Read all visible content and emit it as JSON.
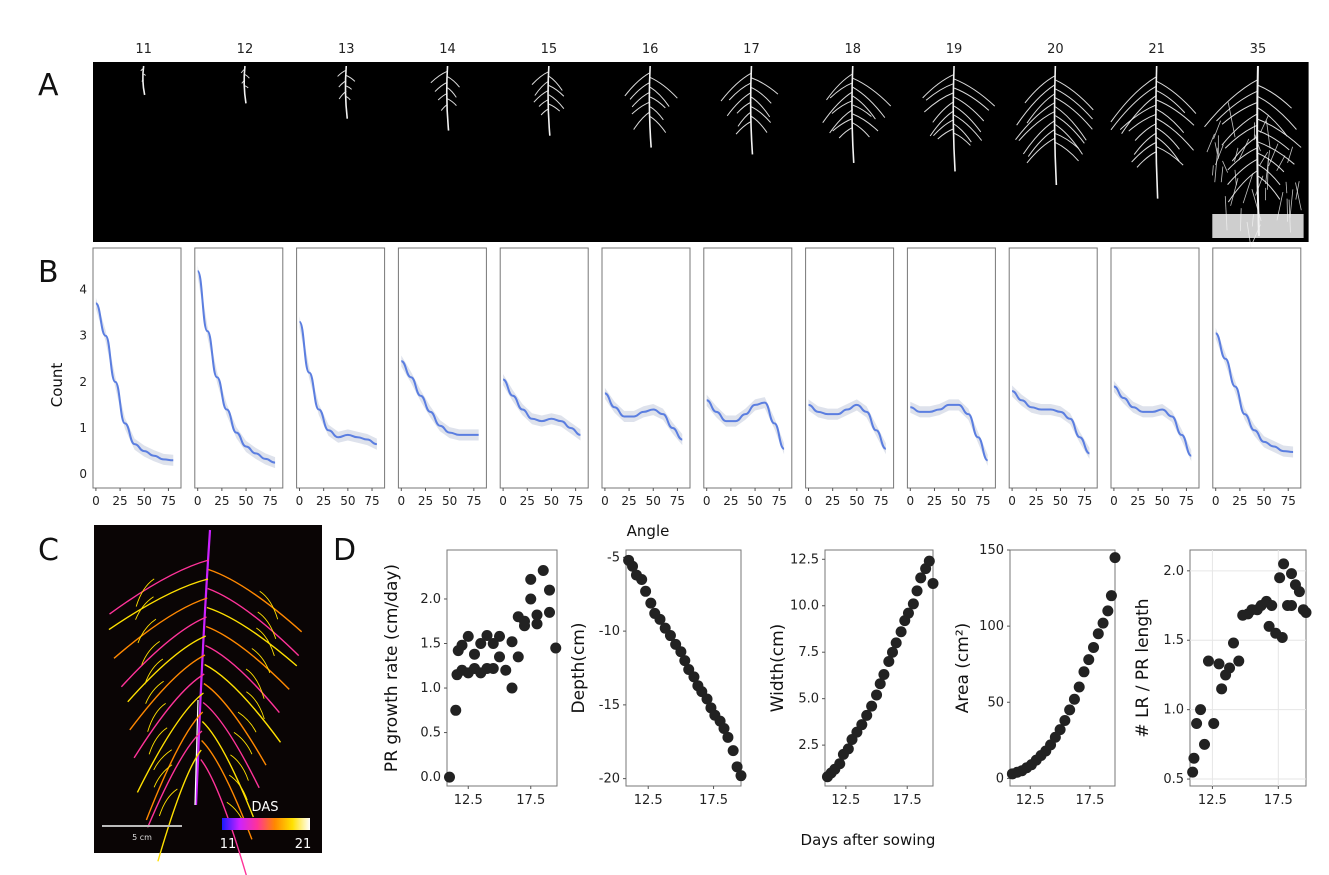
{
  "panel_labels": [
    "A",
    "B",
    "C",
    "D"
  ],
  "panel_a": {
    "days": [
      "11",
      "12",
      "13",
      "14",
      "15",
      "16",
      "17",
      "18",
      "19",
      "20",
      "21",
      "35"
    ],
    "root_extent": [
      0.17,
      0.22,
      0.31,
      0.38,
      0.41,
      0.48,
      0.52,
      0.57,
      0.62,
      0.7,
      0.78,
      1.0
    ],
    "root_halfwidth": [
      0.03,
      0.05,
      0.09,
      0.14,
      0.19,
      0.24,
      0.28,
      0.34,
      0.38,
      0.42,
      0.42,
      0.46
    ],
    "background": "#000000",
    "root_color": "#f2f2f2"
  },
  "panel_b": {
    "ylabel": "Count",
    "xlabel": "Angle",
    "x_ticks": [
      "0",
      "25",
      "50",
      "75"
    ],
    "y_ticks": [
      "0",
      "1",
      "2",
      "3",
      "4"
    ],
    "line_color": "#5b7ee0",
    "ribbon_color": "#d0d6e4",
    "chart_data": {
      "type": "line",
      "x": [
        0,
        10,
        20,
        30,
        40,
        50,
        60,
        70,
        80
      ],
      "xlim": [
        -3,
        88
      ],
      "ylim": [
        -0.3,
        4.9
      ],
      "series": [
        {
          "values": [
            3.7,
            3.0,
            2.0,
            1.1,
            0.65,
            0.5,
            0.4,
            0.32,
            0.3
          ]
        },
        {
          "values": [
            4.4,
            3.1,
            2.1,
            1.4,
            0.9,
            0.6,
            0.45,
            0.33,
            0.25
          ]
        },
        {
          "values": [
            3.3,
            2.2,
            1.4,
            0.95,
            0.8,
            0.85,
            0.8,
            0.75,
            0.65
          ]
        },
        {
          "values": [
            2.45,
            2.1,
            1.7,
            1.35,
            1.05,
            0.9,
            0.85,
            0.85,
            0.85
          ]
        },
        {
          "values": [
            2.05,
            1.7,
            1.4,
            1.2,
            1.15,
            1.2,
            1.15,
            1.0,
            0.85
          ]
        },
        {
          "values": [
            1.75,
            1.45,
            1.25,
            1.25,
            1.35,
            1.4,
            1.3,
            1.0,
            0.75
          ]
        },
        {
          "values": [
            1.6,
            1.35,
            1.15,
            1.15,
            1.3,
            1.5,
            1.55,
            1.1,
            0.55
          ]
        },
        {
          "values": [
            1.5,
            1.35,
            1.3,
            1.3,
            1.4,
            1.5,
            1.35,
            0.95,
            0.55
          ]
        },
        {
          "values": [
            1.45,
            1.35,
            1.35,
            1.4,
            1.5,
            1.5,
            1.3,
            0.8,
            0.3
          ]
        },
        {
          "values": [
            1.8,
            1.6,
            1.45,
            1.4,
            1.4,
            1.35,
            1.2,
            0.8,
            0.45
          ]
        },
        {
          "values": [
            1.9,
            1.65,
            1.45,
            1.35,
            1.35,
            1.4,
            1.25,
            0.85,
            0.4
          ]
        },
        {
          "values": [
            3.05,
            2.5,
            1.9,
            1.3,
            0.95,
            0.7,
            0.6,
            0.5,
            0.48
          ]
        }
      ]
    }
  },
  "panel_c": {
    "legend_title": "DAS",
    "legend_min": "11",
    "legend_max": "21",
    "scale_bar_label": "5 cm",
    "gradient_colors": [
      "#1a1aff",
      "#cc22ff",
      "#ff3399",
      "#ff8800",
      "#ffe000",
      "#ffffff"
    ]
  },
  "panel_d": {
    "xlabel": "Days after sowing",
    "point_color": "#222222",
    "chart_data": [
      {
        "type": "scatter",
        "ylabel": "PR growth rate (cm/day)",
        "xlim": [
          10.8,
          19.6
        ],
        "ylim": [
          -0.1,
          2.55
        ],
        "x_ticks": [
          12.5,
          17.5
        ],
        "y_ticks": [
          0.0,
          0.5,
          1.0,
          1.5,
          2.0
        ],
        "x": [
          11,
          11.5,
          11.6,
          11.7,
          12,
          12,
          12.5,
          12.5,
          13,
          13,
          13.5,
          13.5,
          14,
          14,
          14.5,
          14.5,
          15,
          15,
          15.5,
          16,
          16,
          16.5,
          16.5,
          17,
          17,
          17.5,
          17.5,
          18,
          18,
          18.5,
          19,
          19,
          19.5
        ],
        "y": [
          0.0,
          0.75,
          1.15,
          1.42,
          1.2,
          1.48,
          1.17,
          1.58,
          1.22,
          1.38,
          1.17,
          1.5,
          1.22,
          1.59,
          1.22,
          1.5,
          1.35,
          1.58,
          1.2,
          1.52,
          1.0,
          1.35,
          1.8,
          1.7,
          1.75,
          2.0,
          2.22,
          1.72,
          1.82,
          2.32,
          2.1,
          1.85,
          1.45
        ]
      },
      {
        "type": "scatter",
        "ylabel": "Depth(cm)",
        "xlim": [
          10.8,
          19.6
        ],
        "ylim": [
          -20.5,
          -4.5
        ],
        "x_ticks": [
          12.5,
          17.5
        ],
        "y_ticks": [
          -5,
          -10,
          -15,
          -20
        ],
        "x": [
          11,
          11.3,
          11.6,
          12,
          12.3,
          12.7,
          13,
          13.4,
          13.8,
          14.2,
          14.6,
          15,
          15.3,
          15.6,
          16,
          16.3,
          16.6,
          17,
          17.3,
          17.6,
          18,
          18.3,
          18.6,
          19,
          19.3,
          19.6
        ],
        "y": [
          -5.2,
          -5.6,
          -6.2,
          -6.5,
          -7.3,
          -8.1,
          -8.8,
          -9.2,
          -9.8,
          -10.3,
          -10.9,
          -11.4,
          -12,
          -12.6,
          -13.1,
          -13.7,
          -14.1,
          -14.6,
          -15.2,
          -15.7,
          -16.1,
          -16.6,
          -17.2,
          -18.1,
          -19.2,
          -19.8
        ]
      },
      {
        "type": "scatter",
        "ylabel": "Width(cm)",
        "xlim": [
          10.8,
          19.6
        ],
        "ylim": [
          0.3,
          13.0
        ],
        "x_ticks": [
          12.5,
          17.5
        ],
        "y_ticks": [
          2.5,
          5.0,
          7.5,
          10.0,
          12.5
        ],
        "x": [
          11,
          11.3,
          11.6,
          12,
          12.3,
          12.7,
          13,
          13.4,
          13.8,
          14.2,
          14.6,
          15,
          15.3,
          15.6,
          16,
          16.3,
          16.6,
          17,
          17.3,
          17.6,
          18,
          18.3,
          18.6,
          19,
          19.3,
          19.6
        ],
        "y": [
          0.8,
          1.0,
          1.2,
          1.5,
          2.0,
          2.3,
          2.8,
          3.2,
          3.6,
          4.1,
          4.6,
          5.2,
          5.8,
          6.3,
          7.0,
          7.5,
          8.0,
          8.6,
          9.2,
          9.6,
          10.1,
          10.8,
          11.5,
          12.0,
          12.4,
          11.2
        ]
      },
      {
        "type": "scatter",
        "ylabel": "Area (cm²)",
        "xlim": [
          10.8,
          19.6
        ],
        "ylim": [
          -5,
          150
        ],
        "x_ticks": [
          12.5,
          17.5
        ],
        "y_ticks": [
          0,
          50,
          100,
          150
        ],
        "x": [
          11,
          11.4,
          11.8,
          12.2,
          12.6,
          13,
          13.4,
          13.8,
          14.2,
          14.6,
          15,
          15.4,
          15.8,
          16.2,
          16.6,
          17,
          17.4,
          17.8,
          18.2,
          18.6,
          19,
          19.3,
          19.6
        ],
        "y": [
          3,
          4,
          5,
          7,
          9,
          12,
          15,
          18,
          22,
          27,
          32,
          38,
          45,
          52,
          60,
          70,
          78,
          86,
          95,
          102,
          110,
          120,
          145
        ]
      },
      {
        "type": "scatter",
        "ylabel": "# LR / PR length",
        "xlim": [
          10.8,
          19.6
        ],
        "ylim": [
          0.45,
          2.15
        ],
        "x_ticks": [
          12.5,
          17.5
        ],
        "y_ticks": [
          0.5,
          1.0,
          1.5,
          2.0
        ],
        "x": [
          11,
          11.1,
          11.3,
          11.6,
          11.9,
          12.2,
          12.6,
          13,
          13.2,
          13.5,
          13.8,
          14.1,
          14.5,
          14.8,
          15.2,
          15.5,
          15.9,
          16.2,
          16.6,
          17,
          17.3,
          17.6,
          17.9,
          18.2,
          18.5,
          18.8,
          19.1,
          19.4,
          19.6,
          17.8,
          18.5,
          16.8
        ],
        "y": [
          0.55,
          0.65,
          0.9,
          1.0,
          0.75,
          1.35,
          0.9,
          1.33,
          1.15,
          1.25,
          1.3,
          1.48,
          1.35,
          1.68,
          1.69,
          1.72,
          1.72,
          1.75,
          1.78,
          1.75,
          1.55,
          1.95,
          2.05,
          1.75,
          1.98,
          1.9,
          1.85,
          1.72,
          1.7,
          1.52,
          1.75,
          1.6
        ]
      }
    ]
  }
}
